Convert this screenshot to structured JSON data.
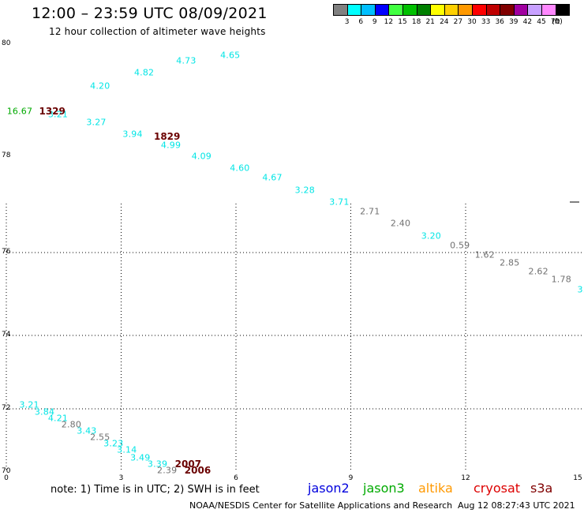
{
  "header": {
    "title": "12:00 – 23:59 UTC 08/09/2021",
    "subtitle": "12 hour collection of altimeter wave heights"
  },
  "legend": {
    "unit": "(ft)",
    "items": [
      {
        "label": "3",
        "color": "#808080"
      },
      {
        "label": "6",
        "color": "#00ffff"
      },
      {
        "label": "9",
        "color": "#00bfff"
      },
      {
        "label": "12",
        "color": "#0000ff"
      },
      {
        "label": "15",
        "color": "#40ff40"
      },
      {
        "label": "18",
        "color": "#00c000"
      },
      {
        "label": "21",
        "color": "#008000"
      },
      {
        "label": "24",
        "color": "#ffff00"
      },
      {
        "label": "27",
        "color": "#ffd000"
      },
      {
        "label": "30",
        "color": "#ff9900"
      },
      {
        "label": "33",
        "color": "#ff0000"
      },
      {
        "label": "36",
        "color": "#c00000"
      },
      {
        "label": "39",
        "color": "#800000"
      },
      {
        "label": "42",
        "color": "#a000a0"
      },
      {
        "label": "45",
        "color": "#c8a0ff"
      },
      {
        "label": "70",
        "color": "#ff88ff"
      },
      {
        "label": "",
        "color": "#000000"
      }
    ]
  },
  "axes": {
    "x_ticks": [
      "0",
      "3",
      "6",
      "9",
      "12",
      "15"
    ],
    "y_ticks": [
      "80",
      "78",
      "76",
      "74",
      "72",
      "70"
    ]
  },
  "readings": [
    {
      "v": "16.67",
      "lon": 0.35,
      "lat": 78.8,
      "c": "#00aa00"
    },
    {
      "v": "3.21",
      "lon": 1.35,
      "lat": 78.75,
      "c": "#00e5e5"
    },
    {
      "v": "4.20",
      "lon": 2.45,
      "lat": 79.25,
      "c": "#00e5e5"
    },
    {
      "v": "4.82",
      "lon": 3.6,
      "lat": 79.5,
      "c": "#00e5e5"
    },
    {
      "v": "4.73",
      "lon": 4.7,
      "lat": 79.7,
      "c": "#00e5e5"
    },
    {
      "v": "4.65",
      "lon": 5.85,
      "lat": 79.8,
      "c": "#00e5e5"
    },
    {
      "v": "3.27",
      "lon": 2.35,
      "lat": 78.6,
      "c": "#00e5e5"
    },
    {
      "v": "3.94",
      "lon": 3.3,
      "lat": 78.4,
      "c": "#00e5e5"
    },
    {
      "v": "4.99",
      "lon": 4.3,
      "lat": 78.2,
      "c": "#00e5e5"
    },
    {
      "v": "4.09",
      "lon": 5.1,
      "lat": 78.0,
      "c": "#00e5e5"
    },
    {
      "v": "4.60",
      "lon": 6.1,
      "lat": 77.75,
      "c": "#00e5e5"
    },
    {
      "v": "4.67",
      "lon": 6.95,
      "lat": 77.55,
      "c": "#00e5e5"
    },
    {
      "v": "3.28",
      "lon": 7.8,
      "lat": 77.3,
      "c": "#00e5e5"
    },
    {
      "v": "3.71",
      "lon": 8.7,
      "lat": 77.05,
      "c": "#00e5e5"
    },
    {
      "v": "2.71",
      "lon": 9.5,
      "lat": 76.85,
      "c": "#707070"
    },
    {
      "v": "2.40",
      "lon": 10.3,
      "lat": 76.6,
      "c": "#707070"
    },
    {
      "v": "3.20",
      "lon": 11.1,
      "lat": 76.35,
      "c": "#00e5e5"
    },
    {
      "v": "0.59",
      "lon": 11.85,
      "lat": 76.15,
      "c": "#707070"
    },
    {
      "v": "1.62",
      "lon": 12.5,
      "lat": 75.95,
      "c": "#707070"
    },
    {
      "v": "2.85",
      "lon": 13.15,
      "lat": 75.75,
      "c": "#707070"
    },
    {
      "v": "2.62",
      "lon": 13.9,
      "lat": 75.55,
      "c": "#707070"
    },
    {
      "v": "1.78",
      "lon": 14.5,
      "lat": 75.35,
      "c": "#707070"
    },
    {
      "v": "3.",
      "lon": 15.1,
      "lat": 75.1,
      "c": "#00e5e5"
    },
    {
      "v": "3.21",
      "lon": 0.6,
      "lat": 72.1,
      "c": "#00e5e5"
    },
    {
      "v": "3.84",
      "lon": 1.0,
      "lat": 71.9,
      "c": "#00e5e5"
    },
    {
      "v": "4.21",
      "lon": 1.35,
      "lat": 71.7,
      "c": "#00e5e5"
    },
    {
      "v": "2.80",
      "lon": 1.7,
      "lat": 71.5,
      "c": "#707070"
    },
    {
      "v": "3.43",
      "lon": 2.1,
      "lat": 71.3,
      "c": "#00e5e5"
    },
    {
      "v": "2.55",
      "lon": 2.45,
      "lat": 71.1,
      "c": "#707070"
    },
    {
      "v": "3.23",
      "lon": 2.8,
      "lat": 70.9,
      "c": "#00e5e5"
    },
    {
      "v": "3.14",
      "lon": 3.15,
      "lat": 70.7,
      "c": "#00e5e5"
    },
    {
      "v": "3.49",
      "lon": 3.5,
      "lat": 70.45,
      "c": "#00e5e5"
    },
    {
      "v": "3.39",
      "lon": 3.95,
      "lat": 70.25,
      "c": "#00e5e5"
    },
    {
      "v": "2.39",
      "lon": 4.2,
      "lat": 70.05,
      "c": "#707070"
    }
  ],
  "pass_times": [
    {
      "t": "1329",
      "lon": 1.2,
      "lat": 78.8
    },
    {
      "t": "1829",
      "lon": 4.2,
      "lat": 78.35
    },
    {
      "t": "2007",
      "lon": 4.75,
      "lat": 70.25
    },
    {
      "t": "2006",
      "lon": 5.0,
      "lat": 70.05
    }
  ],
  "note": "note:  1) Time is in UTC;  2) SWH is in feet",
  "satellites": [
    {
      "name": "jason2",
      "color": "#0000dd"
    },
    {
      "name": "jason3",
      "color": "#00aa00"
    },
    {
      "name": "altika",
      "color": "#ff9900"
    },
    {
      "name": "cryosat",
      "color": "#dd0000"
    },
    {
      "name": "s3a",
      "color": "#800000"
    }
  ],
  "footer": {
    "credit": "NOAA/NESDIS Center for Satellite Applications and Research",
    "timestamp": "Aug 12 08:27:43 UTC 2021"
  }
}
